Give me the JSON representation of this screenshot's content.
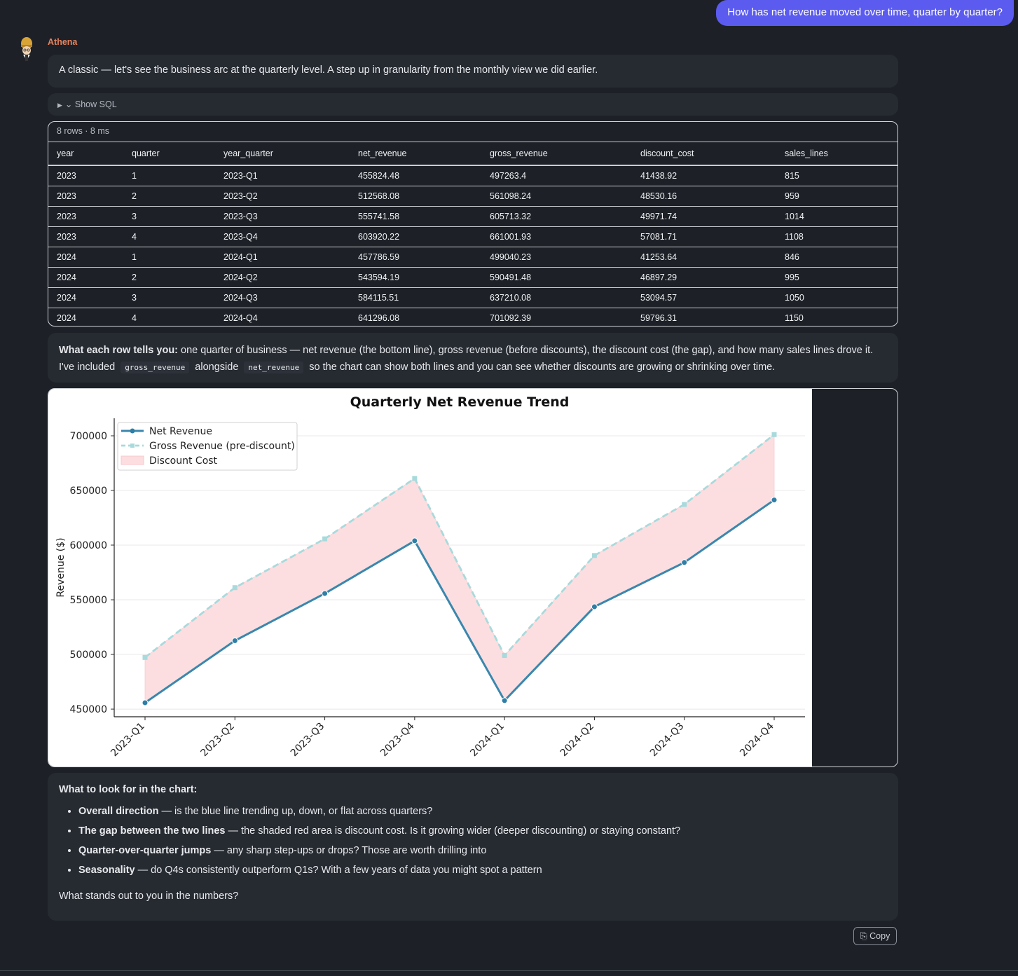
{
  "user_message": "How has net revenue moved over time, quarter by quarter?",
  "assistant": {
    "name": "Athena",
    "intro": "A classic — let's see the business arc at the quarterly level. A step up in granularity from the monthly view we did earlier.",
    "sql_toggle": "Show SQL",
    "copy_label": "Copy"
  },
  "table": {
    "meta": "8 rows · 8 ms",
    "columns": [
      "year",
      "quarter",
      "year_quarter",
      "net_revenue",
      "gross_revenue",
      "discount_cost",
      "sales_lines"
    ],
    "rows": [
      [
        "2023",
        "1",
        "2023-Q1",
        "455824.48",
        "497263.4",
        "41438.92",
        "815"
      ],
      [
        "2023",
        "2",
        "2023-Q2",
        "512568.08",
        "561098.24",
        "48530.16",
        "959"
      ],
      [
        "2023",
        "3",
        "2023-Q3",
        "555741.58",
        "605713.32",
        "49971.74",
        "1014"
      ],
      [
        "2023",
        "4",
        "2023-Q4",
        "603920.22",
        "661001.93",
        "57081.71",
        "1108"
      ],
      [
        "2024",
        "1",
        "2024-Q1",
        "457786.59",
        "499040.23",
        "41253.64",
        "846"
      ],
      [
        "2024",
        "2",
        "2024-Q2",
        "543594.19",
        "590491.48",
        "46897.29",
        "995"
      ],
      [
        "2024",
        "3",
        "2024-Q3",
        "584115.51",
        "637210.08",
        "53094.57",
        "1050"
      ],
      [
        "2024",
        "4",
        "2024-Q4",
        "641296.08",
        "701092.39",
        "59796.31",
        "1150"
      ]
    ]
  },
  "explain": {
    "bold": "What each row tells you:",
    "text1": " one quarter of business — net revenue (the bottom line), gross revenue (before discounts), the discount cost (the gap), and how many sales lines drove it. I've included ",
    "code1": "gross_revenue",
    "text2": " alongside ",
    "code2": "net_revenue",
    "text3": " so the chart can show both lines and you can see whether discounts are growing or shrinking over time."
  },
  "chart_data": {
    "type": "line",
    "title": "Quarterly Net Revenue Trend",
    "xlabel": "",
    "ylabel": "Revenue ($)",
    "categories": [
      "2023-Q1",
      "2023-Q2",
      "2023-Q3",
      "2023-Q4",
      "2024-Q1",
      "2024-Q2",
      "2024-Q3",
      "2024-Q4"
    ],
    "series": [
      {
        "name": "Net Revenue",
        "values": [
          455824.48,
          512568.08,
          555741.58,
          603920.22,
          457786.59,
          543594.19,
          584115.51,
          641296.08
        ],
        "color": "#3a87ad"
      },
      {
        "name": "Gross Revenue (pre-discount)",
        "values": [
          497263.4,
          561098.24,
          605713.32,
          661001.93,
          499040.23,
          590491.48,
          637210.08,
          701092.39
        ],
        "color": "#a8dadc"
      }
    ],
    "fill": {
      "name": "Discount Cost",
      "color": "#fcdde0"
    },
    "yticks": [
      "450000",
      "500000",
      "550000",
      "600000",
      "650000",
      "700000"
    ],
    "ylim": [
      443000,
      716000
    ],
    "grid": true,
    "legend_position": "top-left"
  },
  "look": {
    "heading": "What to look for in the chart:",
    "bullets": [
      {
        "bold": "Overall direction",
        "text": " — is the blue line trending up, down, or flat across quarters?"
      },
      {
        "bold": "The gap between the two lines",
        "text": " — the shaded red area is discount cost. Is it growing wider (deeper discounting) or staying constant?"
      },
      {
        "bold": "Quarter-over-quarter jumps",
        "text": " — any sharp step-ups or drops? Those are worth drilling into"
      },
      {
        "bold": "Seasonality",
        "text": " — do Q4s consistently outperform Q1s? With a few years of data you might spot a pattern"
      }
    ],
    "question": "What stands out to you in the numbers?"
  }
}
